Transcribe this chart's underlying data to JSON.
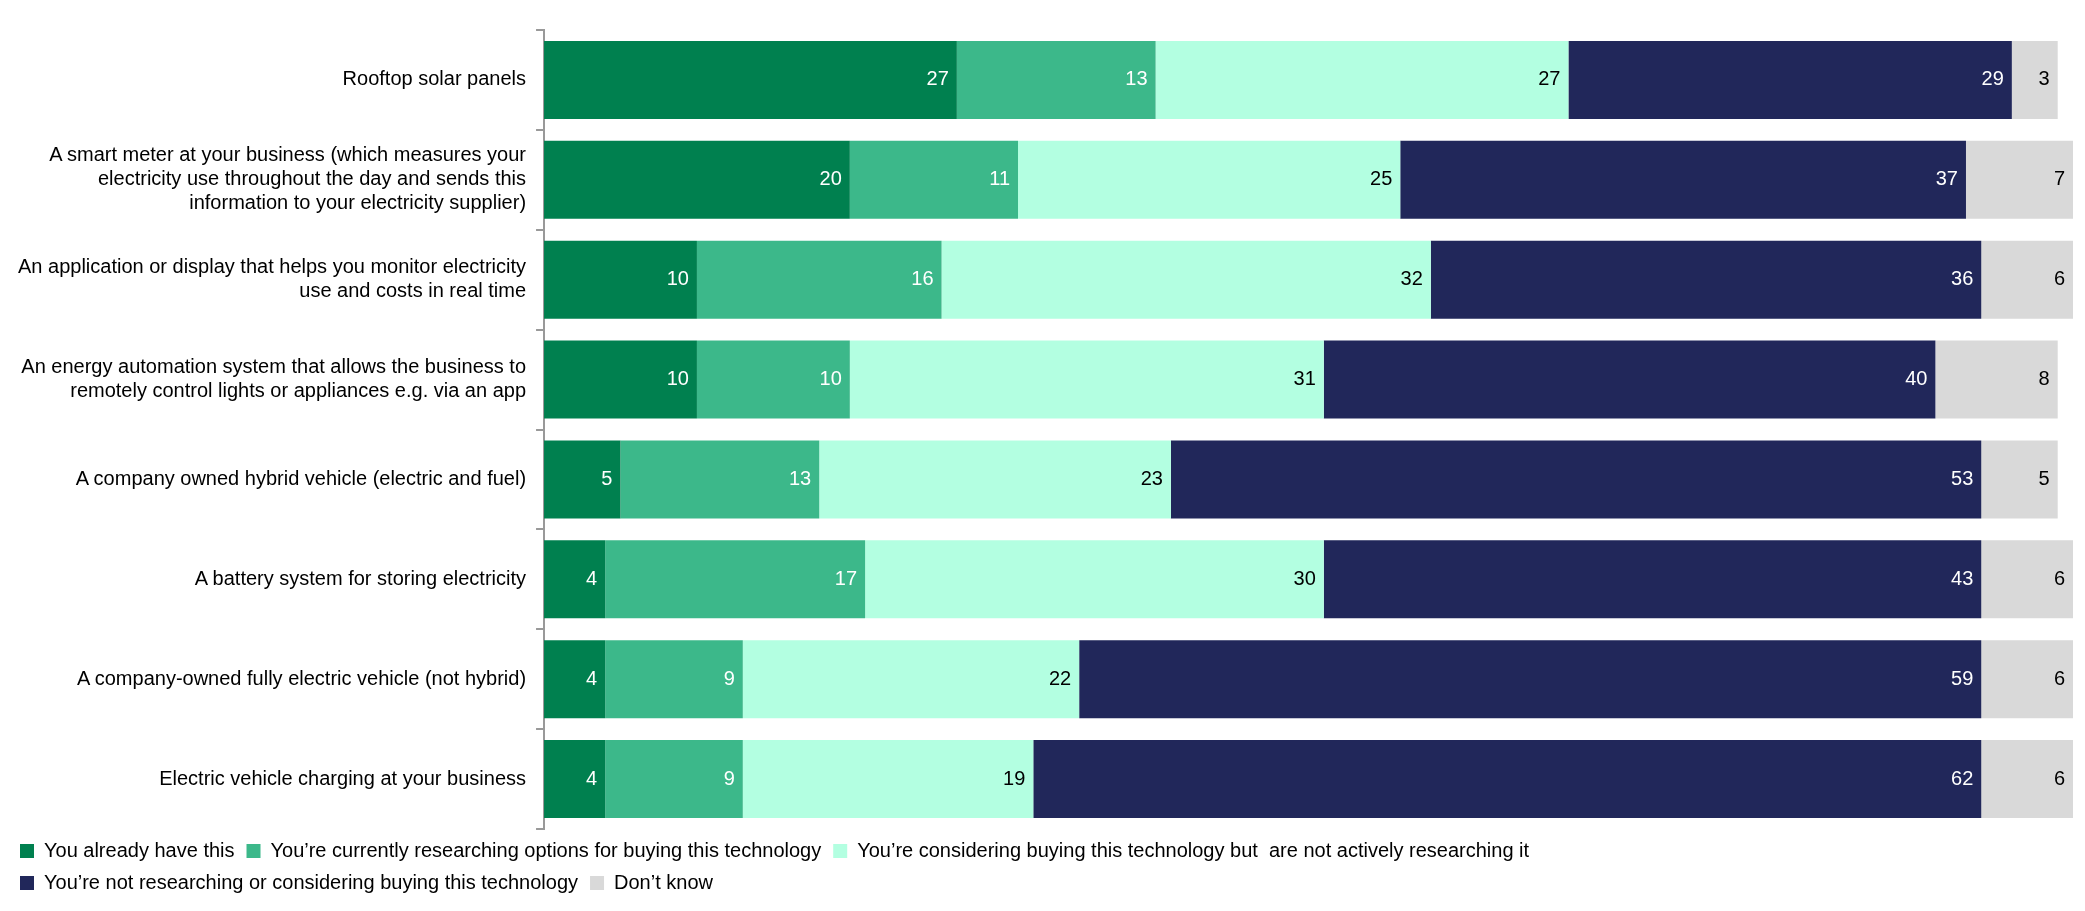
{
  "chart_data": {
    "type": "bar",
    "orientation": "horizontal",
    "stacked": true,
    "data_labels": true,
    "legend": "bottom",
    "grid": false,
    "categories": [
      "Rooftop solar panels",
      "A smart meter at your business (which measures your electricity use throughout the day and sends this information to your electricity supplier)",
      "An application or display that helps you monitor electricity use and costs in real time",
      "An energy automation system that allows the business to remotely control lights or appliances e.g. via an app",
      "A company owned hybrid vehicle (electric and fuel)",
      "A battery system for storing electricity",
      "A company-owned fully electric vehicle (not hybrid)",
      "Electric vehicle charging at your business"
    ],
    "series": [
      {
        "name": "You already have this",
        "color": "#00804f",
        "values": [
          27,
          20,
          10,
          10,
          5,
          4,
          4,
          4
        ]
      },
      {
        "name": "You’re currently researching options for buying this technology",
        "color": "#3cb88a",
        "values": [
          13,
          11,
          16,
          10,
          13,
          17,
          9,
          9
        ]
      },
      {
        "name": "You’re considering buying this technology but  are not actively researching it",
        "color": "#b3ffe1",
        "values": [
          27,
          25,
          32,
          31,
          23,
          30,
          22,
          19
        ]
      },
      {
        "name": "You’re not researching or considering buying this technology",
        "color": "#21275a",
        "values": [
          29,
          37,
          36,
          40,
          53,
          43,
          59,
          62
        ]
      },
      {
        "name": "Don’t know",
        "color": "#d9d9d9",
        "values": [
          3,
          7,
          6,
          8,
          5,
          6,
          6,
          6
        ]
      }
    ]
  }
}
